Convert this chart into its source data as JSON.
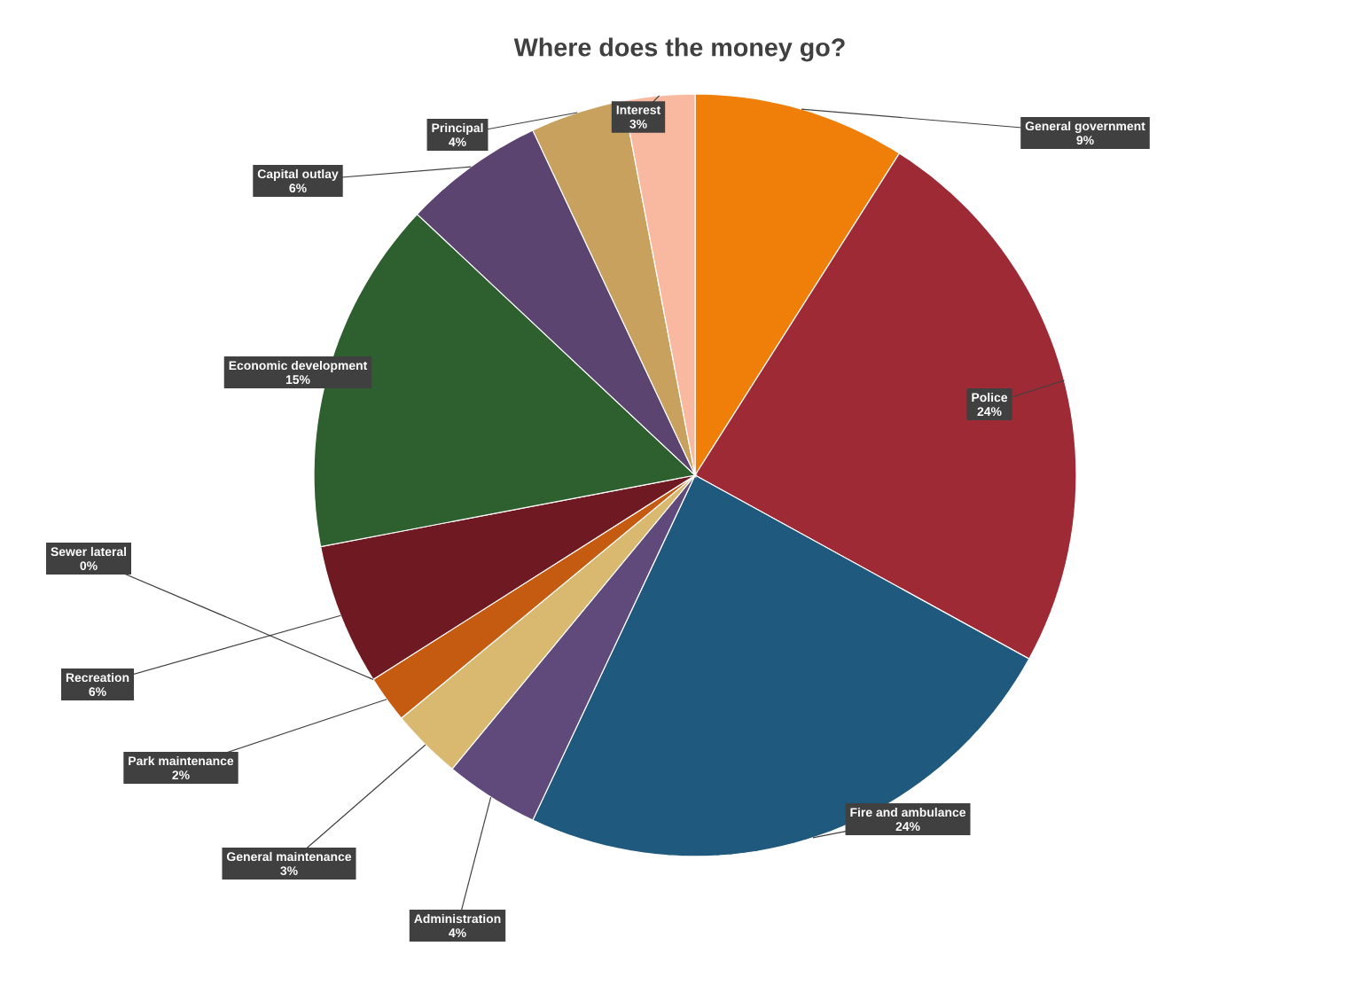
{
  "chart_data": {
    "type": "pie",
    "title": "Where does the money go?",
    "categories": [
      "General government",
      "Police",
      "Fire and ambulance",
      "Administration",
      "General maintenance",
      "Park maintenance",
      "Sewer lateral",
      "Recreation",
      "Economic development",
      "Capital outlay",
      "Principal",
      "Interest"
    ],
    "values": [
      9,
      24,
      24,
      4,
      3,
      2,
      0,
      6,
      15,
      6,
      4,
      3
    ],
    "colors": [
      "#f07f09",
      "#9e2a35",
      "#1f5a7e",
      "#604a7b",
      "#d9b870",
      "#c55a11",
      "#4f81bd",
      "#6f1a22",
      "#2e5f2e",
      "#5b4470",
      "#c9a15e",
      "#f9b9a0"
    ],
    "value_labels": [
      "9%",
      "24%",
      "24%",
      "4%",
      "3%",
      "2%",
      "0%",
      "6%",
      "15%",
      "6%",
      "4%",
      "3%"
    ]
  }
}
